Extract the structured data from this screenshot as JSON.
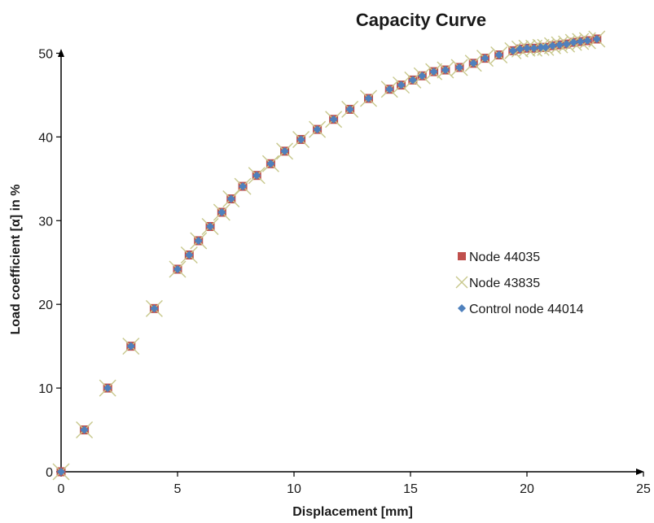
{
  "chart_data": {
    "type": "scatter",
    "title": "Capacity Curve",
    "xlabel": "Displacement [mm]",
    "ylabel": "Load coefficient [α] in %",
    "xlim": [
      0,
      25
    ],
    "ylim": [
      0,
      55
    ],
    "xticks": [
      "0",
      "5",
      "10",
      "15",
      "20",
      "25"
    ],
    "yticks": [
      "0",
      "10",
      "20",
      "30",
      "40",
      "50"
    ],
    "grid": false,
    "legend_position": "right",
    "series": [
      {
        "name": "Node 44035",
        "marker": "square",
        "color": "#c0504d",
        "x": [
          0,
          1,
          2,
          3,
          4,
          5,
          5.5,
          5.9,
          6.4,
          6.9,
          7.3,
          7.8,
          8.4,
          9.0,
          9.6,
          10.3,
          11.0,
          11.7,
          12.4,
          13.2,
          14.1,
          14.6,
          15.1,
          15.5,
          16.0,
          16.5,
          17.1,
          17.7,
          18.2,
          18.8,
          19.4,
          19.7,
          20.0,
          20.3,
          20.6,
          20.8,
          21.1,
          21.4,
          21.7,
          22.0,
          22.3,
          22.6,
          23.0
        ],
        "y": [
          0,
          5,
          10,
          15,
          19.5,
          24.2,
          25.9,
          27.6,
          29.3,
          31.0,
          32.6,
          34.1,
          35.4,
          36.8,
          38.3,
          39.7,
          40.9,
          42.1,
          43.3,
          44.6,
          45.7,
          46.2,
          46.8,
          47.3,
          47.8,
          48.0,
          48.3,
          48.8,
          49.4,
          49.8,
          50.3,
          50.5,
          50.6,
          50.6,
          50.7,
          50.7,
          50.9,
          51.0,
          51.1,
          51.3,
          51.4,
          51.5,
          51.7
        ]
      },
      {
        "name": "Node 43835",
        "marker": "x",
        "color": "#c8c88c",
        "x": [
          0,
          1,
          2,
          3,
          4,
          5,
          5.5,
          5.9,
          6.4,
          6.9,
          7.3,
          7.8,
          8.4,
          9.0,
          9.6,
          10.3,
          11.0,
          11.7,
          12.4,
          13.2,
          14.1,
          14.6,
          15.1,
          15.5,
          16.0,
          16.5,
          17.1,
          17.7,
          18.2,
          18.8,
          19.4,
          19.7,
          20.0,
          20.3,
          20.6,
          20.8,
          21.1,
          21.4,
          21.7,
          22.0,
          22.3,
          22.6,
          23.0
        ],
        "y": [
          0,
          5,
          10,
          15,
          19.5,
          24.2,
          25.9,
          27.6,
          29.3,
          31.0,
          32.6,
          34.1,
          35.4,
          36.8,
          38.3,
          39.7,
          40.9,
          42.1,
          43.3,
          44.6,
          45.7,
          46.2,
          46.8,
          47.3,
          47.8,
          48.0,
          48.3,
          48.8,
          49.4,
          49.8,
          50.3,
          50.5,
          50.6,
          50.6,
          50.7,
          50.7,
          50.9,
          51.0,
          51.1,
          51.3,
          51.4,
          51.5,
          51.7
        ]
      },
      {
        "name": "Control node 44014",
        "marker": "diamond",
        "color": "#4f81bd",
        "x": [
          0,
          1,
          2,
          3,
          4,
          5,
          5.5,
          5.9,
          6.4,
          6.9,
          7.3,
          7.8,
          8.4,
          9.0,
          9.6,
          10.3,
          11.0,
          11.7,
          12.4,
          13.2,
          14.1,
          14.6,
          15.1,
          15.5,
          16.0,
          16.5,
          17.1,
          17.7,
          18.2,
          18.8,
          19.4,
          19.7,
          20.0,
          20.3,
          20.6,
          20.8,
          21.1,
          21.4,
          21.7,
          22.0,
          22.3,
          22.6,
          23.0
        ],
        "y": [
          0,
          5,
          10,
          15,
          19.5,
          24.2,
          25.9,
          27.6,
          29.3,
          31.0,
          32.6,
          34.1,
          35.4,
          36.8,
          38.3,
          39.7,
          40.9,
          42.1,
          43.3,
          44.6,
          45.7,
          46.2,
          46.8,
          47.3,
          47.8,
          48.0,
          48.3,
          48.8,
          49.4,
          49.8,
          50.3,
          50.5,
          50.6,
          50.6,
          50.7,
          50.7,
          50.9,
          51.0,
          51.1,
          51.3,
          51.4,
          51.5,
          51.7
        ]
      }
    ]
  }
}
